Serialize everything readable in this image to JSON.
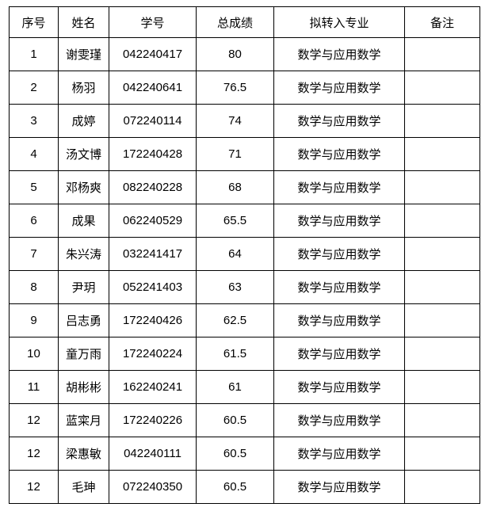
{
  "table": {
    "title_semantic": "student-transfer-score-table",
    "border_color": "#000000",
    "text_color": "#000000",
    "background_color": "#ffffff",
    "headers": [
      "序号",
      "姓名",
      "学号",
      "总成绩",
      "拟转入专业",
      "备注"
    ],
    "rows": [
      [
        "1",
        "谢雯瑾",
        "042240417",
        "80",
        "数学与应用数学",
        ""
      ],
      [
        "2",
        "杨羽",
        "042240641",
        "76.5",
        "数学与应用数学",
        ""
      ],
      [
        "3",
        "成婷",
        "072240114",
        "74",
        "数学与应用数学",
        ""
      ],
      [
        "4",
        "汤文博",
        "172240428",
        "71",
        "数学与应用数学",
        ""
      ],
      [
        "5",
        "邓杨爽",
        "082240228",
        "68",
        "数学与应用数学",
        ""
      ],
      [
        "6",
        "成果",
        "062240529",
        "65.5",
        "数学与应用数学",
        ""
      ],
      [
        "7",
        "朱兴涛",
        "032241417",
        "64",
        "数学与应用数学",
        ""
      ],
      [
        "8",
        "尹玥",
        "052241403",
        "63",
        "数学与应用数学",
        ""
      ],
      [
        "9",
        "吕志勇",
        "172240426",
        "62.5",
        "数学与应用数学",
        ""
      ],
      [
        "10",
        "童万雨",
        "172240224",
        "61.5",
        "数学与应用数学",
        ""
      ],
      [
        "11",
        "胡彬彬",
        "162240241",
        "61",
        "数学与应用数学",
        ""
      ],
      [
        "12",
        "蓝寀月",
        "172240226",
        "60.5",
        "数学与应用数学",
        ""
      ],
      [
        "12",
        "梁惠敏",
        "042240111",
        "60.5",
        "数学与应用数学",
        ""
      ],
      [
        "12",
        "毛珅",
        "072240350",
        "60.5",
        "数学与应用数学",
        ""
      ]
    ]
  }
}
